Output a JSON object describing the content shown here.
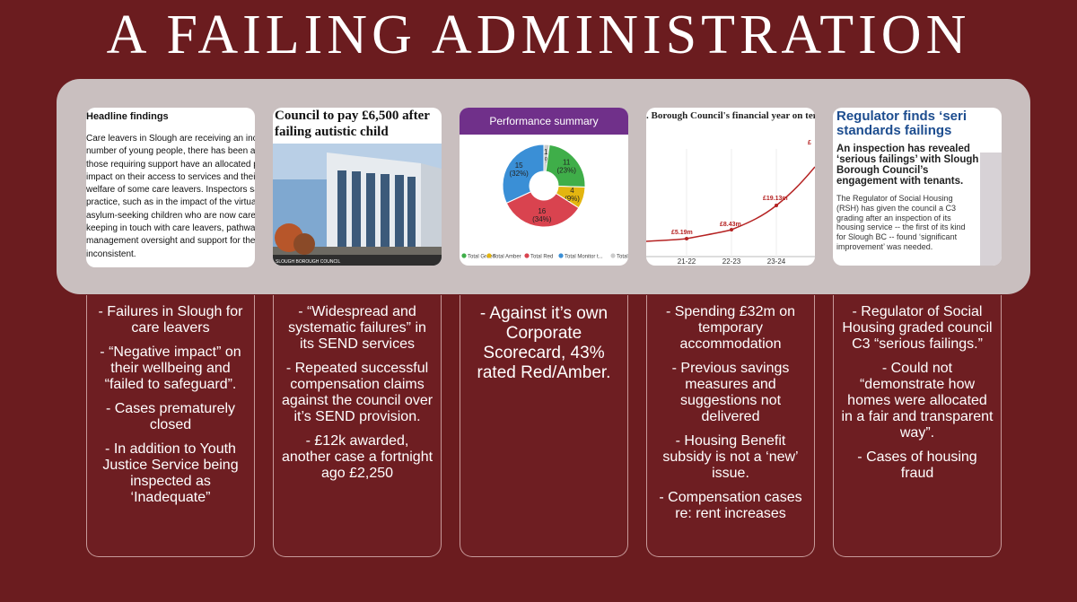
{
  "title": "A FAILING ADMINISTRATION",
  "thumbnails": {
    "care_leavers": {
      "heading": "Headline findings",
      "lines": [
        "Care leavers in Slough are receiving an inconsistent lev",
        "number of young people, there has been a failure to k",
        "those requiring support have an allocated personal adv",
        "impact on their access to services and their wellbeing a",
        "welfare of some care leavers. Inspectors saw improve",
        "practice, such as in the impact of the virtual school, wo",
        "asylum-seeking children who are now care leavers and",
        "keeping in touch with care leavers, pathway planning,",
        "management oversight and support for the workforce",
        "inconsistent."
      ]
    },
    "send_article": {
      "headline": "Council to pay £6,500 after failing autistic child",
      "caption": "SLOUGH BOROUGH COUNCIL"
    },
    "performance": {
      "title": "Performance summary",
      "legend": [
        "Total Green",
        "Total Amber",
        "Total Red",
        "Total Monitor t...",
        "Total KPI i"
      ],
      "colors": {
        "green": "#3fae49",
        "amber": "#e3b510",
        "red": "#d9434f",
        "blue": "#3a8fd6",
        "grey": "#cccccc"
      }
    },
    "temp_accommodation": {
      "headline": ". Borough Council's financial year on temporary accommodation",
      "data_labels": [
        "£5.19m",
        "£8.43m",
        "£19.13m",
        "£"
      ],
      "x_labels": [
        "21-22",
        "22-23",
        "23-24"
      ]
    },
    "regulator": {
      "headline": "Regulator finds ‘seri standards failings",
      "subhead": "An inspection has revealed ‘serious failings’ with Slough Borough Council’s engagement with tenants.",
      "body": "The Regulator of Social Housing (RSH) has given the council a C3 grading after an inspection of its housing service -- the first of its kind for Slough BC -- found ‘significant improvement’ was needed."
    }
  },
  "chart_data": {
    "type": "pie",
    "title": "Performance summary",
    "categories": [
      "Total Green",
      "Total Amber",
      "Total Red",
      "Total Monitor t...",
      "Total KPI i"
    ],
    "values": [
      11,
      4,
      16,
      15,
      1
    ],
    "labels": [
      "11\n(23%)",
      "4\n(9%)",
      "16\n(34%)",
      "15\n(32%)",
      "1\n(2%)"
    ]
  },
  "cards": [
    {
      "points": [
        "- Failures in Slough for care leavers",
        "- “Negative impact” on their wellbeing and “failed to safeguard”.",
        "- Cases prematurely closed",
        "- In addition to Youth Justice Service being inspected as ‘Inadequate”"
      ]
    },
    {
      "points": [
        "- “Widespread and systematic failures” in its SEND services",
        "- Repeated successful compensation claims against the council over it’s SEND provision.",
        "- £12k awarded, another case a fortnight ago £2,250"
      ]
    },
    {
      "points": [
        "- Against it’s own Corporate Scorecard, 43% rated Red/Amber."
      ]
    },
    {
      "points": [
        "- Spending £32m on temporary accommodation",
        "- Previous savings measures and suggestions not delivered",
        "- Housing Benefit subsidy is not a ‘new’ issue.",
        "- Compensation cases re: rent increases"
      ]
    },
    {
      "points": [
        "- Regulator of Social Housing graded council C3 “serious failings.”",
        "- Could not “demonstrate how homes were allocated in a fair and transparent way”.",
        "- Cases of housing fraud"
      ]
    }
  ]
}
